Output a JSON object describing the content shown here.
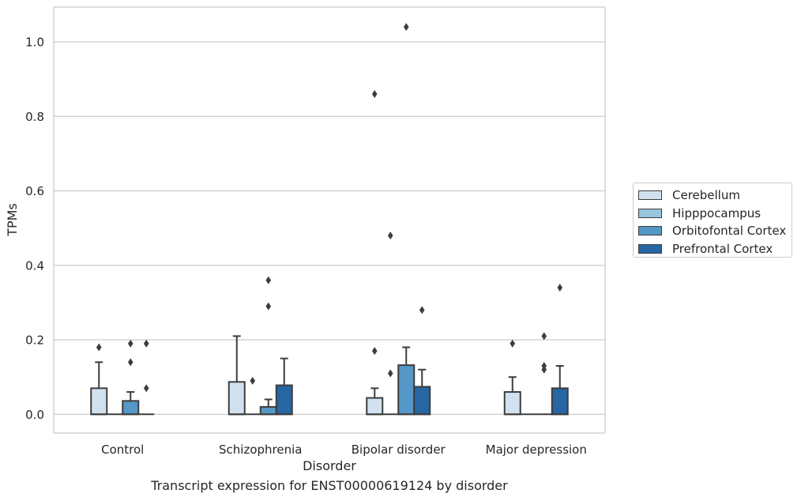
{
  "caption": "Transcript expression for ENST00000619124 by disorder",
  "chart_data": {
    "type": "box",
    "xlabel": "Disorder",
    "ylabel": "TPMs",
    "ylim": [
      -0.05,
      1.09
    ],
    "yticks": [
      0.0,
      0.2,
      0.4,
      0.6,
      0.8,
      1.0
    ],
    "ytick_labels": [
      "0.0",
      "0.2",
      "0.4",
      "0.6",
      "0.8",
      "1.0"
    ],
    "grid": "horizontal",
    "legend_position": "right",
    "categories": [
      "Control",
      "Schizophrenia",
      "Bipolar disorder",
      "Major depression"
    ],
    "series": [
      {
        "name": "Cerebellum",
        "color": "#d1e1f0",
        "boxes": [
          {
            "whislo": 0,
            "q1": 0,
            "med": 0,
            "q3": 0.07,
            "whishi": 0.14,
            "fliers": [
              0.18
            ]
          },
          {
            "whislo": 0,
            "q1": 0,
            "med": 0,
            "q3": 0.087,
            "whishi": 0.21,
            "fliers": []
          },
          {
            "whislo": 0,
            "q1": 0,
            "med": 0,
            "q3": 0.044,
            "whishi": 0.07,
            "fliers": [
              0.17,
              0.86
            ]
          },
          {
            "whislo": 0,
            "q1": 0,
            "med": 0,
            "q3": 0.06,
            "whishi": 0.1,
            "fliers": [
              0.19
            ]
          }
        ]
      },
      {
        "name": "Hipppocampus",
        "color": "#9ac3de",
        "boxes": [
          {
            "whislo": 0,
            "q1": 0,
            "med": 0,
            "q3": 0,
            "whishi": 0,
            "fliers": []
          },
          {
            "whislo": 0,
            "q1": 0,
            "med": 0,
            "q3": 0,
            "whishi": 0,
            "fliers": [
              0.09
            ]
          },
          {
            "whislo": 0,
            "q1": 0,
            "med": 0,
            "q3": 0,
            "whishi": 0,
            "fliers": [
              0.11,
              0.48
            ]
          },
          {
            "whislo": 0,
            "q1": 0,
            "med": 0,
            "q3": 0,
            "whishi": 0,
            "fliers": []
          }
        ]
      },
      {
        "name": "Orbitofontal Cortex",
        "color": "#5597c6",
        "boxes": [
          {
            "whislo": 0,
            "q1": 0,
            "med": 0,
            "q3": 0.036,
            "whishi": 0.06,
            "fliers": [
              0.14,
              0.19
            ]
          },
          {
            "whislo": 0,
            "q1": 0,
            "med": 0,
            "q3": 0.02,
            "whishi": 0.04,
            "fliers": [
              0.29,
              0.36
            ]
          },
          {
            "whislo": 0,
            "q1": 0,
            "med": 0,
            "q3": 0.132,
            "whishi": 0.18,
            "fliers": [
              1.04
            ]
          },
          {
            "whislo": 0,
            "q1": 0,
            "med": 0,
            "q3": 0,
            "whishi": 0,
            "fliers": [
              0.12,
              0.13,
              0.21
            ]
          }
        ]
      },
      {
        "name": "Prefrontal Cortex",
        "color": "#2765a3",
        "boxes": [
          {
            "whislo": 0,
            "q1": 0,
            "med": 0,
            "q3": 0,
            "whishi": 0,
            "fliers": [
              0.07,
              0.19
            ]
          },
          {
            "whislo": 0,
            "q1": 0,
            "med": 0,
            "q3": 0.078,
            "whishi": 0.15,
            "fliers": []
          },
          {
            "whislo": 0,
            "q1": 0,
            "med": 0,
            "q3": 0.074,
            "whishi": 0.12,
            "fliers": [
              0.28
            ]
          },
          {
            "whislo": 0,
            "q1": 0,
            "med": 0,
            "q3": 0.07,
            "whishi": 0.13,
            "fliers": [
              0.34
            ]
          }
        ]
      }
    ]
  }
}
